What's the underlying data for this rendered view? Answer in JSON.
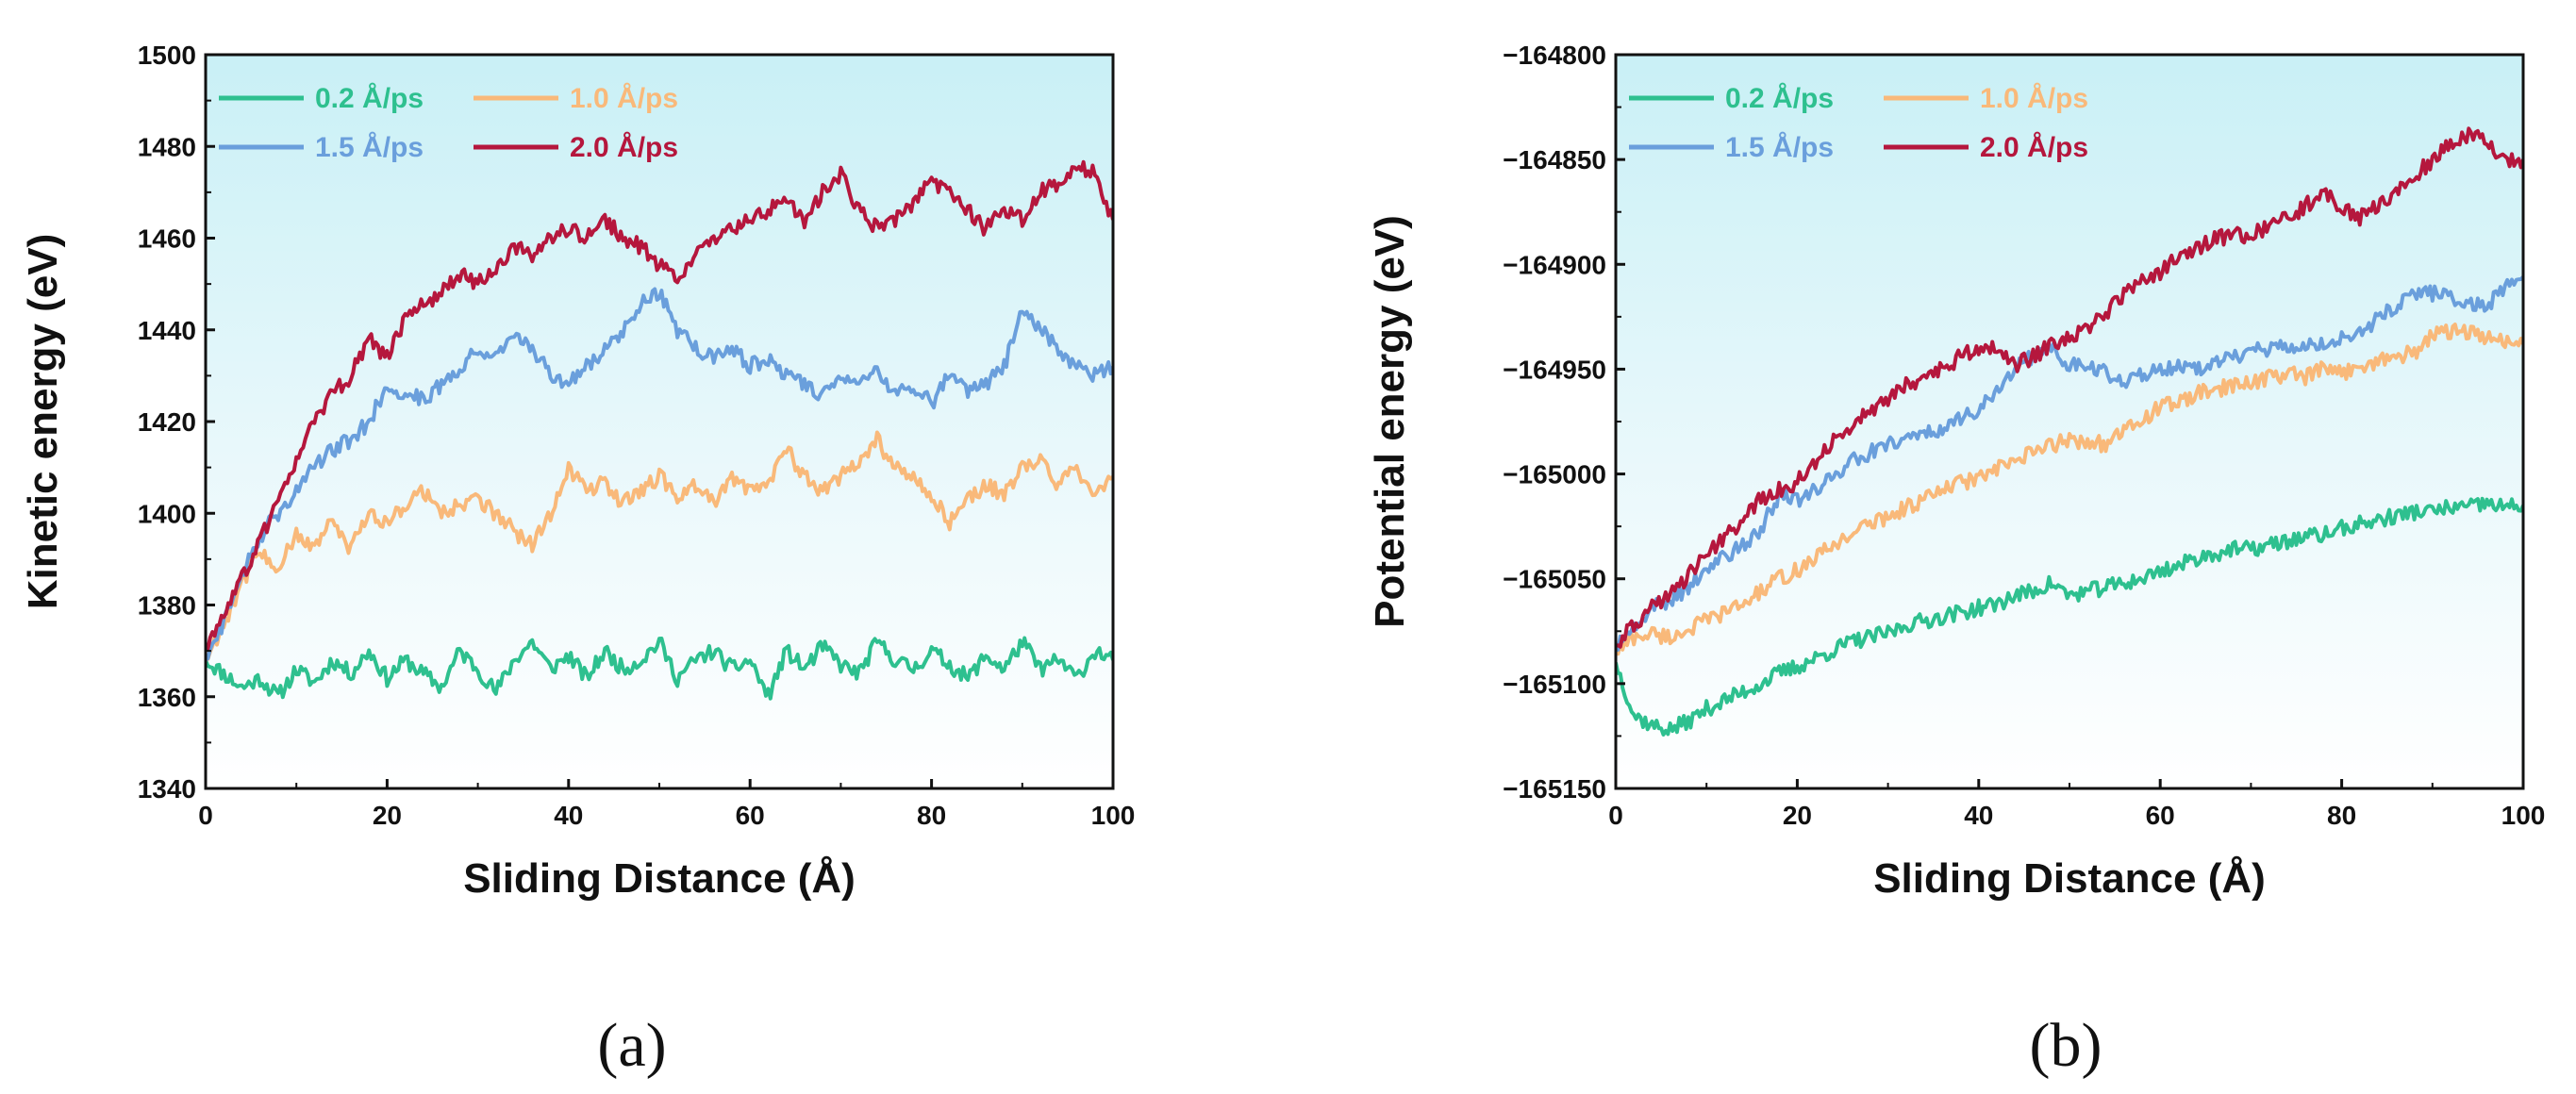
{
  "chart_data": [
    {
      "type": "line",
      "panel_label": "(a)",
      "xlabel": "Sliding Distance (Å)",
      "ylabel": "Kinetic energy (eV)",
      "xlim": [
        0,
        100
      ],
      "ylim": [
        1340,
        1500
      ],
      "xticks": [
        0,
        20,
        40,
        60,
        80,
        100
      ],
      "yticks": [
        1340,
        1360,
        1380,
        1400,
        1420,
        1440,
        1460,
        1480,
        1500
      ],
      "tick_labels_x": [
        "0",
        "20",
        "40",
        "60",
        "80",
        "100"
      ],
      "tick_labels_y": [
        "1340",
        "1360",
        "1380",
        "1400",
        "1420",
        "1440",
        "1460",
        "1480",
        "1500"
      ],
      "legend_position": "top-left",
      "background": "light-cyan-gradient",
      "series": [
        {
          "name": "0.2 Å/ps",
          "color": "#2ec08f",
          "x": [
            0,
            2,
            4,
            6,
            8,
            10,
            12,
            14,
            16,
            18,
            20,
            22,
            24,
            26,
            28,
            30,
            32,
            34,
            36,
            38,
            40,
            42,
            44,
            46,
            48,
            50,
            52,
            54,
            56,
            58,
            60,
            62,
            64,
            66,
            68,
            70,
            72,
            74,
            76,
            78,
            80,
            82,
            84,
            86,
            88,
            90,
            92,
            94,
            96,
            98,
            100
          ],
          "y": [
            1368,
            1365,
            1362,
            1364,
            1360,
            1366,
            1363,
            1368,
            1365,
            1370,
            1364,
            1368,
            1365,
            1362,
            1370,
            1366,
            1361,
            1368,
            1372,
            1366,
            1369,
            1364,
            1370,
            1366,
            1368,
            1372,
            1364,
            1368,
            1370,
            1366,
            1368,
            1360,
            1370,
            1366,
            1371,
            1367,
            1365,
            1372,
            1368,
            1366,
            1370,
            1367,
            1364,
            1369,
            1366,
            1372,
            1366,
            1368,
            1364,
            1370,
            1368
          ]
        },
        {
          "name": "1.0 Å/ps",
          "color": "#f9b97a",
          "x": [
            0,
            2,
            4,
            6,
            8,
            10,
            12,
            14,
            16,
            18,
            20,
            22,
            24,
            26,
            28,
            30,
            32,
            34,
            36,
            38,
            40,
            42,
            44,
            46,
            48,
            50,
            52,
            54,
            56,
            58,
            60,
            62,
            64,
            66,
            68,
            70,
            72,
            74,
            76,
            78,
            80,
            82,
            84,
            86,
            88,
            90,
            92,
            94,
            96,
            98,
            100
          ],
          "y": [
            1368,
            1376,
            1385,
            1392,
            1388,
            1395,
            1393,
            1398,
            1392,
            1400,
            1398,
            1402,
            1405,
            1400,
            1402,
            1403,
            1400,
            1396,
            1393,
            1400,
            1410,
            1405,
            1407,
            1402,
            1405,
            1408,
            1404,
            1406,
            1402,
            1408,
            1405,
            1407,
            1414,
            1408,
            1405,
            1408,
            1411,
            1416,
            1410,
            1408,
            1404,
            1398,
            1403,
            1406,
            1404,
            1410,
            1412,
            1406,
            1410,
            1404,
            1408
          ]
        },
        {
          "name": "1.5 Å/ps",
          "color": "#6a9fdc",
          "x": [
            0,
            2,
            4,
            6,
            8,
            10,
            12,
            14,
            16,
            18,
            20,
            22,
            24,
            26,
            28,
            30,
            32,
            34,
            36,
            38,
            40,
            42,
            44,
            46,
            48,
            50,
            52,
            54,
            56,
            58,
            60,
            62,
            64,
            66,
            68,
            70,
            72,
            74,
            76,
            78,
            80,
            82,
            84,
            86,
            88,
            90,
            92,
            94,
            96,
            98,
            100
          ],
          "y": [
            1368,
            1376,
            1386,
            1395,
            1400,
            1405,
            1410,
            1414,
            1416,
            1420,
            1428,
            1426,
            1425,
            1428,
            1432,
            1436,
            1434,
            1438,
            1436,
            1430,
            1428,
            1432,
            1436,
            1440,
            1446,
            1448,
            1440,
            1436,
            1434,
            1436,
            1432,
            1434,
            1430,
            1428,
            1426,
            1430,
            1428,
            1432,
            1426,
            1428,
            1424,
            1430,
            1426,
            1428,
            1432,
            1444,
            1440,
            1436,
            1432,
            1430,
            1432
          ]
        },
        {
          "name": "2.0 Å/ps",
          "color": "#b5173d",
          "x": [
            0,
            2,
            4,
            6,
            8,
            10,
            12,
            14,
            16,
            18,
            20,
            22,
            24,
            26,
            28,
            30,
            32,
            34,
            36,
            38,
            40,
            42,
            44,
            46,
            48,
            50,
            52,
            54,
            56,
            58,
            60,
            62,
            64,
            66,
            68,
            70,
            72,
            74,
            76,
            78,
            80,
            82,
            84,
            86,
            88,
            90,
            92,
            94,
            96,
            98,
            100
          ],
          "y": [
            1370,
            1378,
            1386,
            1394,
            1402,
            1412,
            1420,
            1426,
            1430,
            1438,
            1434,
            1442,
            1446,
            1448,
            1452,
            1450,
            1454,
            1458,
            1456,
            1460,
            1462,
            1460,
            1464,
            1460,
            1458,
            1454,
            1452,
            1456,
            1460,
            1462,
            1464,
            1466,
            1468,
            1464,
            1470,
            1474,
            1466,
            1462,
            1464,
            1468,
            1472,
            1470,
            1466,
            1462,
            1466,
            1464,
            1470,
            1472,
            1476,
            1474,
            1464
          ]
        }
      ]
    },
    {
      "type": "line",
      "panel_label": "(b)",
      "xlabel": "Sliding Distance (Å)",
      "ylabel": "Potential energy (eV)",
      "xlim": [
        0,
        100
      ],
      "ylim": [
        -165150,
        -164800
      ],
      "xticks": [
        0,
        20,
        40,
        60,
        80,
        100
      ],
      "yticks": [
        -165150,
        -165100,
        -165050,
        -165000,
        -164950,
        -164900,
        -164850,
        -164800
      ],
      "tick_labels_x": [
        "0",
        "20",
        "40",
        "60",
        "80",
        "100"
      ],
      "tick_labels_y": [
        "−165150",
        "−165100",
        "−165050",
        "−165000",
        "−164950",
        "−164900",
        "−164850",
        "−164800"
      ],
      "legend_position": "top-left",
      "background": "light-cyan-gradient",
      "series": [
        {
          "name": "0.2 Å/ps",
          "color": "#2ec08f",
          "x": [
            0,
            2,
            4,
            6,
            8,
            10,
            12,
            14,
            16,
            18,
            20,
            22,
            24,
            26,
            28,
            30,
            32,
            34,
            36,
            38,
            40,
            42,
            44,
            46,
            48,
            50,
            52,
            54,
            56,
            58,
            60,
            62,
            64,
            66,
            68,
            70,
            72,
            74,
            76,
            78,
            80,
            82,
            84,
            86,
            88,
            90,
            92,
            94,
            96,
            98,
            100
          ],
          "y": [
            -165090,
            -165115,
            -165120,
            -165122,
            -165118,
            -165112,
            -165108,
            -165104,
            -165100,
            -165095,
            -165092,
            -165088,
            -165084,
            -165080,
            -165078,
            -165076,
            -165072,
            -165070,
            -165068,
            -165066,
            -165064,
            -165062,
            -165058,
            -165056,
            -165052,
            -165058,
            -165056,
            -165054,
            -165052,
            -165050,
            -165046,
            -165044,
            -165040,
            -165038,
            -165036,
            -165036,
            -165034,
            -165032,
            -165030,
            -165029,
            -165026,
            -165024,
            -165022,
            -165020,
            -165018,
            -165018,
            -165016,
            -165016,
            -165014,
            -165016,
            -165015
          ]
        },
        {
          "name": "1.0 Å/ps",
          "color": "#f9b97a",
          "x": [
            0,
            2,
            4,
            6,
            8,
            10,
            12,
            14,
            16,
            18,
            20,
            22,
            24,
            26,
            28,
            30,
            32,
            34,
            36,
            38,
            40,
            42,
            44,
            46,
            48,
            50,
            52,
            54,
            56,
            58,
            60,
            62,
            64,
            66,
            68,
            70,
            72,
            74,
            76,
            78,
            80,
            82,
            84,
            86,
            88,
            90,
            92,
            94,
            96,
            98,
            100
          ],
          "y": [
            -165085,
            -165078,
            -165076,
            -165078,
            -165074,
            -165070,
            -165066,
            -165062,
            -165056,
            -165050,
            -165046,
            -165040,
            -165034,
            -165028,
            -165024,
            -165020,
            -165016,
            -165012,
            -165008,
            -165004,
            -165002,
            -164998,
            -164994,
            -164990,
            -164986,
            -164984,
            -164984,
            -164986,
            -164980,
            -164974,
            -164968,
            -164966,
            -164962,
            -164960,
            -164958,
            -164956,
            -164954,
            -164952,
            -164954,
            -164950,
            -164952,
            -164948,
            -164946,
            -164944,
            -164942,
            -164934,
            -164932,
            -164932,
            -164936,
            -164936,
            -164938
          ]
        },
        {
          "name": "1.5 Å/ps",
          "color": "#6a9fdc",
          "x": [
            0,
            2,
            4,
            6,
            8,
            10,
            12,
            14,
            16,
            18,
            20,
            22,
            24,
            26,
            28,
            30,
            32,
            34,
            36,
            38,
            40,
            42,
            44,
            46,
            48,
            50,
            52,
            54,
            56,
            58,
            60,
            62,
            64,
            66,
            68,
            70,
            72,
            74,
            76,
            78,
            80,
            82,
            84,
            86,
            88,
            90,
            92,
            94,
            96,
            98,
            100
          ],
          "y": [
            -165084,
            -165072,
            -165064,
            -165060,
            -165054,
            -165046,
            -165040,
            -165034,
            -165026,
            -165010,
            -165012,
            -165008,
            -165000,
            -164994,
            -164990,
            -164986,
            -164984,
            -164980,
            -164978,
            -164974,
            -164970,
            -164960,
            -164950,
            -164944,
            -164940,
            -164948,
            -164950,
            -164952,
            -164956,
            -164952,
            -164950,
            -164948,
            -164950,
            -164948,
            -164944,
            -164942,
            -164940,
            -164938,
            -164940,
            -164938,
            -164934,
            -164932,
            -164926,
            -164920,
            -164914,
            -164914,
            -164916,
            -164918,
            -164920,
            -164910,
            -164906
          ]
        },
        {
          "name": "2.0 Å/ps",
          "color": "#b5173d",
          "x": [
            0,
            2,
            4,
            6,
            8,
            10,
            12,
            14,
            16,
            18,
            20,
            22,
            24,
            26,
            28,
            30,
            32,
            34,
            36,
            38,
            40,
            42,
            44,
            46,
            48,
            50,
            52,
            54,
            56,
            58,
            60,
            62,
            64,
            66,
            68,
            70,
            72,
            74,
            76,
            78,
            80,
            82,
            84,
            86,
            88,
            90,
            92,
            94,
            96,
            98,
            100
          ],
          "y": [
            -165082,
            -165072,
            -165064,
            -165058,
            -165048,
            -165038,
            -165030,
            -165022,
            -165012,
            -165008,
            -165004,
            -164994,
            -164984,
            -164978,
            -164970,
            -164964,
            -164958,
            -164954,
            -164950,
            -164944,
            -164940,
            -164940,
            -164948,
            -164944,
            -164938,
            -164936,
            -164930,
            -164924,
            -164914,
            -164908,
            -164904,
            -164896,
            -164892,
            -164888,
            -164886,
            -164886,
            -164882,
            -164878,
            -164872,
            -164866,
            -164872,
            -164878,
            -164872,
            -164866,
            -164858,
            -164850,
            -164842,
            -164838,
            -164840,
            -164852,
            -164850
          ]
        }
      ]
    }
  ]
}
